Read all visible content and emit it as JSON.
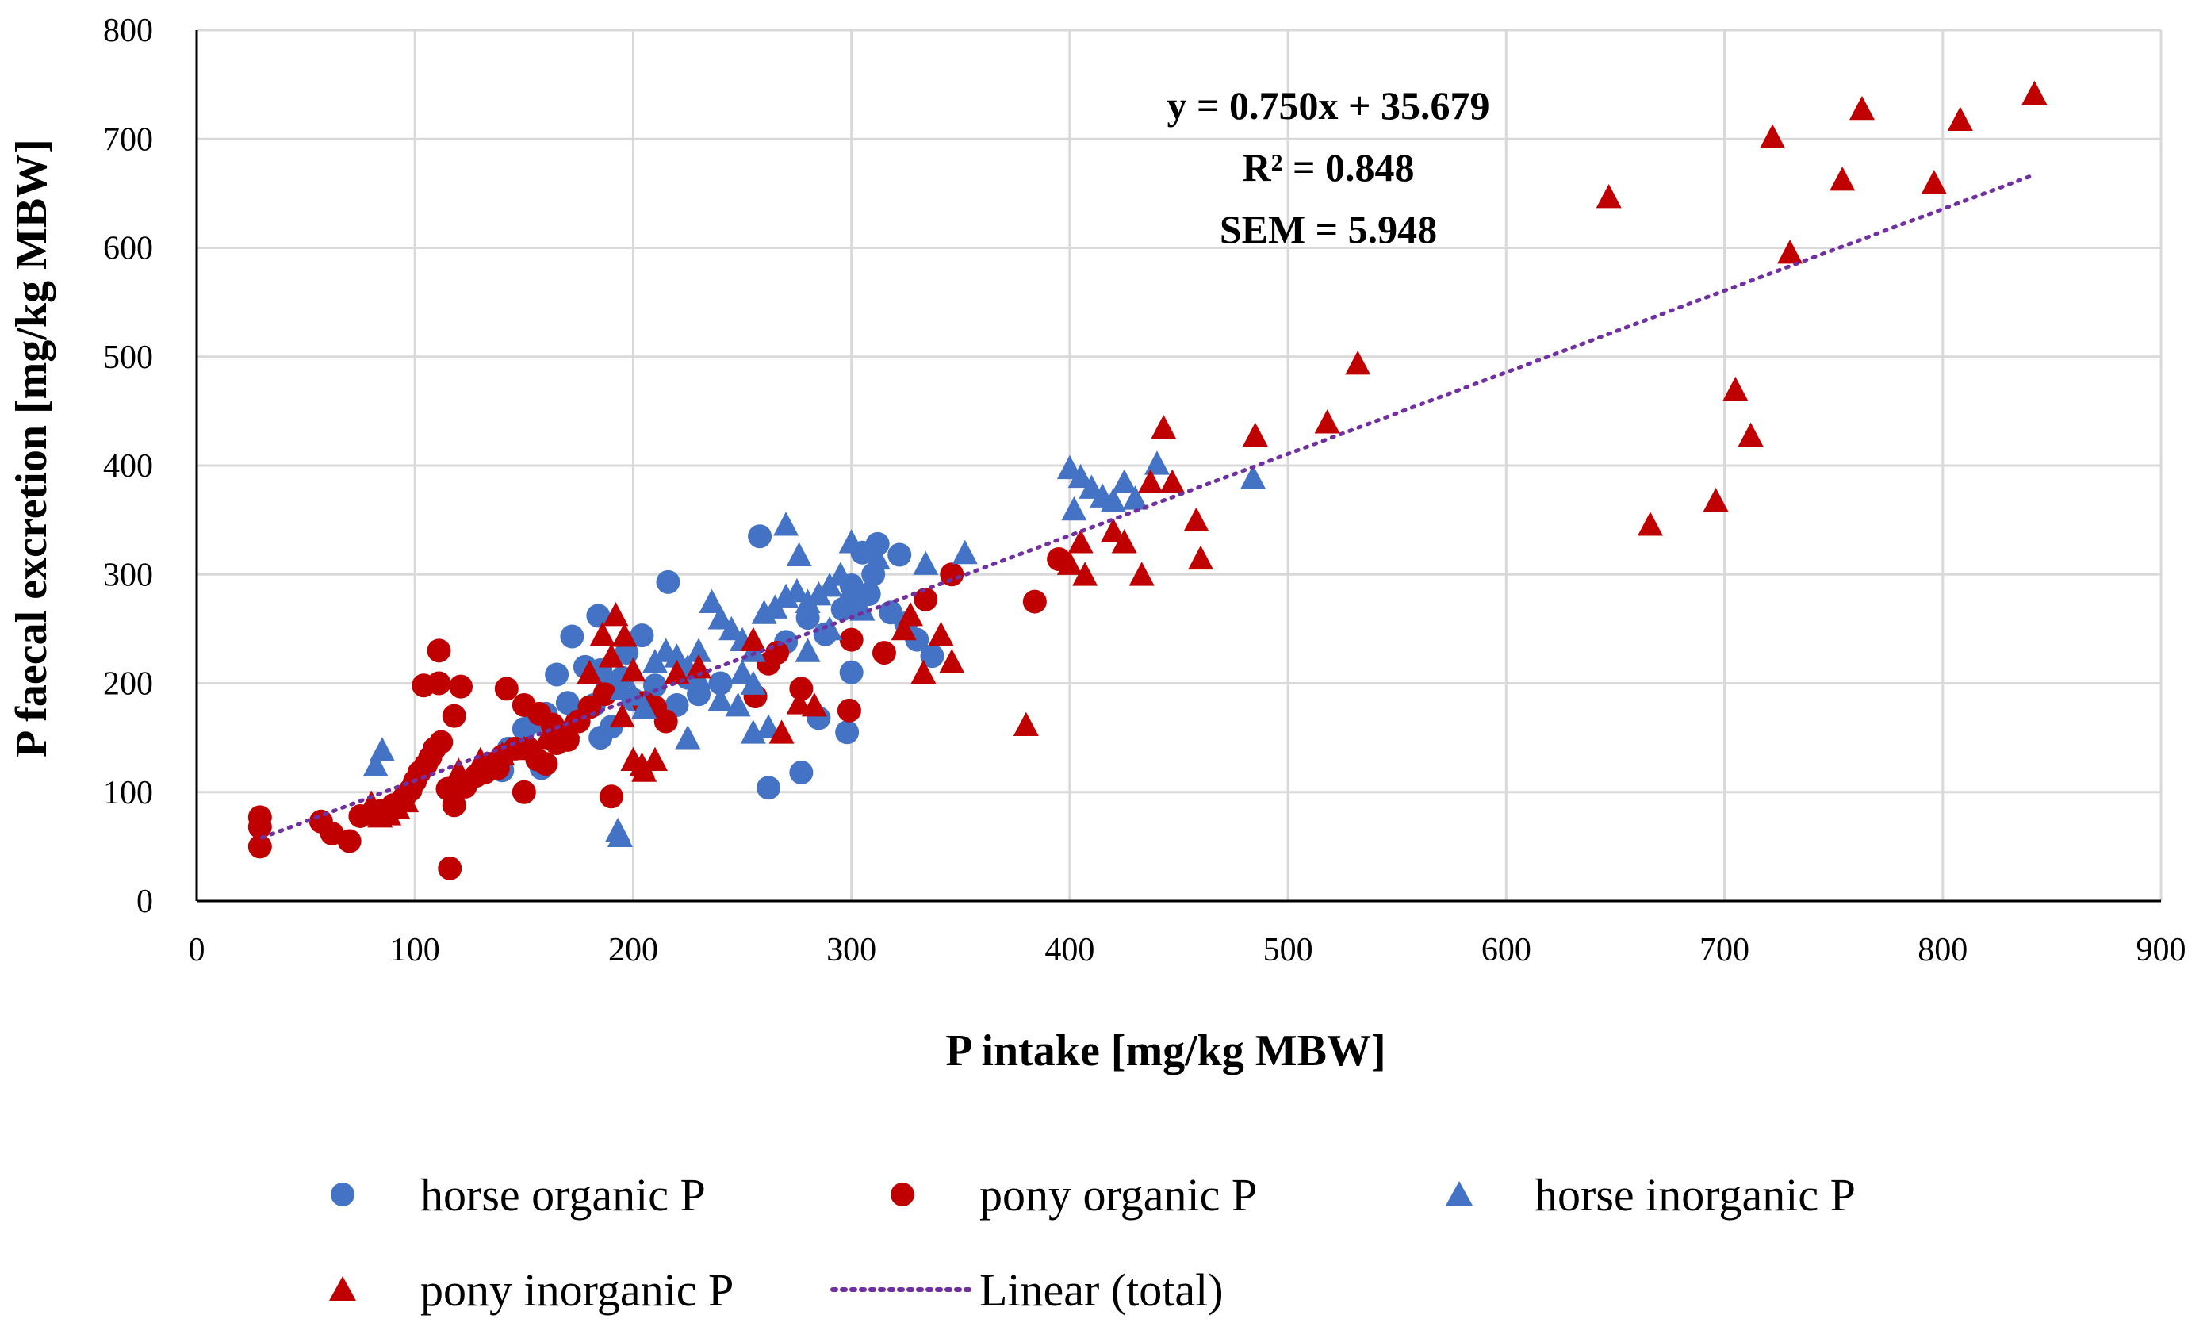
{
  "chart_data": {
    "type": "scatter",
    "title": "",
    "xlabel": "P intake [mg/kg MBW]",
    "ylabel": "P faecal excretion [mg/kg MBW]",
    "xlim": [
      0,
      900
    ],
    "ylim": [
      0,
      800
    ],
    "xticks": [
      0,
      100,
      200,
      300,
      400,
      500,
      600,
      700,
      800,
      900
    ],
    "yticks": [
      0,
      100,
      200,
      300,
      400,
      500,
      600,
      700,
      800
    ],
    "grid": true,
    "annotations": [
      "y = 0.750x + 35.679",
      "R² = 0.848",
      "SEM = 5.948"
    ],
    "legend_position": "bottom",
    "trendline": {
      "name": "Linear (total)",
      "slope": 0.75,
      "intercept": 35.679,
      "x_range": [
        30,
        842
      ],
      "color": "#7030a0"
    },
    "series": [
      {
        "name": "horse organic P",
        "marker": "circle",
        "color": "#4472c4",
        "points": [
          [
            258,
            335
          ],
          [
            216,
            293
          ],
          [
            312,
            328
          ],
          [
            322,
            318
          ],
          [
            305,
            320
          ],
          [
            184,
            262
          ],
          [
            172,
            243
          ],
          [
            204,
            244
          ],
          [
            197,
            228
          ],
          [
            185,
            212
          ],
          [
            165,
            208
          ],
          [
            178,
            215
          ],
          [
            188,
            195
          ],
          [
            195,
            205
          ],
          [
            200,
            185
          ],
          [
            210,
            198
          ],
          [
            225,
            205
          ],
          [
            182,
            180
          ],
          [
            170,
            182
          ],
          [
            160,
            172
          ],
          [
            155,
            165
          ],
          [
            150,
            158
          ],
          [
            143,
            140
          ],
          [
            140,
            120
          ],
          [
            158,
            122
          ],
          [
            190,
            160
          ],
          [
            185,
            150
          ],
          [
            220,
            180
          ],
          [
            230,
            190
          ],
          [
            240,
            200
          ],
          [
            310,
            300
          ],
          [
            300,
            290
          ],
          [
            296,
            268
          ],
          [
            308,
            282
          ],
          [
            318,
            265
          ],
          [
            325,
            255
          ],
          [
            330,
            240
          ],
          [
            300,
            210
          ],
          [
            262,
            104
          ],
          [
            277,
            118
          ],
          [
            298,
            155
          ],
          [
            285,
            168
          ],
          [
            337,
            225
          ],
          [
            288,
            245
          ],
          [
            280,
            260
          ],
          [
            270,
            238
          ]
        ]
      },
      {
        "name": "pony organic P",
        "marker": "circle",
        "color": "#c00000",
        "points": [
          [
            29,
            77
          ],
          [
            29,
            68
          ],
          [
            29,
            50
          ],
          [
            57,
            73
          ],
          [
            62,
            62
          ],
          [
            70,
            55
          ],
          [
            75,
            78
          ],
          [
            80,
            80
          ],
          [
            85,
            83
          ],
          [
            90,
            88
          ],
          [
            95,
            95
          ],
          [
            98,
            102
          ],
          [
            100,
            110
          ],
          [
            102,
            118
          ],
          [
            105,
            125
          ],
          [
            107,
            132
          ],
          [
            109,
            140
          ],
          [
            112,
            146
          ],
          [
            104,
            198
          ],
          [
            111,
            230
          ],
          [
            111,
            200
          ],
          [
            118,
            170
          ],
          [
            121,
            197
          ],
          [
            115,
            103
          ],
          [
            118,
            88
          ],
          [
            116,
            30
          ],
          [
            123,
            105
          ],
          [
            128,
            115
          ],
          [
            132,
            118
          ],
          [
            134,
            126
          ],
          [
            138,
            122
          ],
          [
            140,
            133
          ],
          [
            146,
            140
          ],
          [
            150,
            100
          ],
          [
            152,
            140
          ],
          [
            156,
            130
          ],
          [
            160,
            126
          ],
          [
            165,
            145
          ],
          [
            170,
            148
          ],
          [
            142,
            195
          ],
          [
            150,
            180
          ],
          [
            157,
            172
          ],
          [
            163,
            162
          ],
          [
            175,
            165
          ],
          [
            180,
            178
          ],
          [
            187,
            190
          ],
          [
            190,
            96
          ],
          [
            205,
            182
          ],
          [
            210,
            178
          ],
          [
            215,
            165
          ],
          [
            256,
            188
          ],
          [
            262,
            218
          ],
          [
            266,
            228
          ],
          [
            277,
            195
          ],
          [
            299,
            175
          ],
          [
            300,
            240
          ],
          [
            315,
            228
          ],
          [
            334,
            277
          ],
          [
            346,
            300
          ],
          [
            384,
            275
          ],
          [
            395,
            314
          ]
        ]
      },
      {
        "name": "horse inorganic P",
        "marker": "triangle",
        "color": "#4472c4",
        "points": [
          [
            85,
            139
          ],
          [
            82,
            125
          ],
          [
            193,
            65
          ],
          [
            194,
            60
          ],
          [
            270,
            346
          ],
          [
            276,
            318
          ],
          [
            300,
            330
          ],
          [
            312,
            315
          ],
          [
            334,
            310
          ],
          [
            352,
            320
          ],
          [
            230,
            230
          ],
          [
            236,
            275
          ],
          [
            240,
            260
          ],
          [
            245,
            250
          ],
          [
            250,
            240
          ],
          [
            255,
            230
          ],
          [
            260,
            265
          ],
          [
            265,
            270
          ],
          [
            270,
            280
          ],
          [
            275,
            285
          ],
          [
            280,
            275
          ],
          [
            285,
            282
          ],
          [
            290,
            290
          ],
          [
            295,
            300
          ],
          [
            298,
            280
          ],
          [
            302,
            275
          ],
          [
            305,
            268
          ],
          [
            210,
            220
          ],
          [
            215,
            230
          ],
          [
            220,
            225
          ],
          [
            225,
            215
          ],
          [
            230,
            205
          ],
          [
            240,
            185
          ],
          [
            248,
            180
          ],
          [
            255,
            155
          ],
          [
            262,
            160
          ],
          [
            225,
            150
          ],
          [
            195,
            195
          ],
          [
            200,
            190
          ],
          [
            205,
            178
          ],
          [
            255,
            200
          ],
          [
            250,
            210
          ],
          [
            400,
            398
          ],
          [
            405,
            390
          ],
          [
            410,
            380
          ],
          [
            415,
            372
          ],
          [
            420,
            368
          ],
          [
            425,
            385
          ],
          [
            430,
            370
          ],
          [
            440,
            402
          ],
          [
            484,
            389
          ],
          [
            402,
            360
          ],
          [
            280,
            230
          ],
          [
            290,
            250
          ]
        ]
      },
      {
        "name": "pony inorganic P",
        "marker": "triangle",
        "color": "#c00000",
        "points": [
          [
            80,
            90
          ],
          [
            84,
            78
          ],
          [
            88,
            80
          ],
          [
            92,
            86
          ],
          [
            96,
            92
          ],
          [
            192,
            263
          ],
          [
            196,
            244
          ],
          [
            186,
            245
          ],
          [
            180,
            210
          ],
          [
            190,
            225
          ],
          [
            200,
            212
          ],
          [
            195,
            170
          ],
          [
            200,
            130
          ],
          [
            204,
            125
          ],
          [
            205,
            120
          ],
          [
            210,
            130
          ],
          [
            220,
            210
          ],
          [
            230,
            215
          ],
          [
            255,
            240
          ],
          [
            268,
            155
          ],
          [
            276,
            182
          ],
          [
            283,
            180
          ],
          [
            324,
            250
          ],
          [
            327,
            263
          ],
          [
            333,
            210
          ],
          [
            341,
            245
          ],
          [
            346,
            220
          ],
          [
            380,
            162
          ],
          [
            400,
            310
          ],
          [
            405,
            330
          ],
          [
            407,
            300
          ],
          [
            420,
            340
          ],
          [
            425,
            330
          ],
          [
            433,
            300
          ],
          [
            437,
            385
          ],
          [
            443,
            435
          ],
          [
            447,
            385
          ],
          [
            458,
            350
          ],
          [
            460,
            315
          ],
          [
            485,
            428
          ],
          [
            518,
            440
          ],
          [
            532,
            494
          ],
          [
            647,
            647
          ],
          [
            666,
            346
          ],
          [
            696,
            368
          ],
          [
            705,
            470
          ],
          [
            712,
            428
          ],
          [
            722,
            702
          ],
          [
            730,
            596
          ],
          [
            754,
            663
          ],
          [
            763,
            728
          ],
          [
            796,
            660
          ],
          [
            808,
            718
          ],
          [
            842,
            742
          ],
          [
            150,
            140
          ],
          [
            160,
            150
          ],
          [
            170,
            160
          ],
          [
            120,
            120
          ],
          [
            130,
            130
          ],
          [
            140,
            135
          ]
        ]
      }
    ]
  }
}
